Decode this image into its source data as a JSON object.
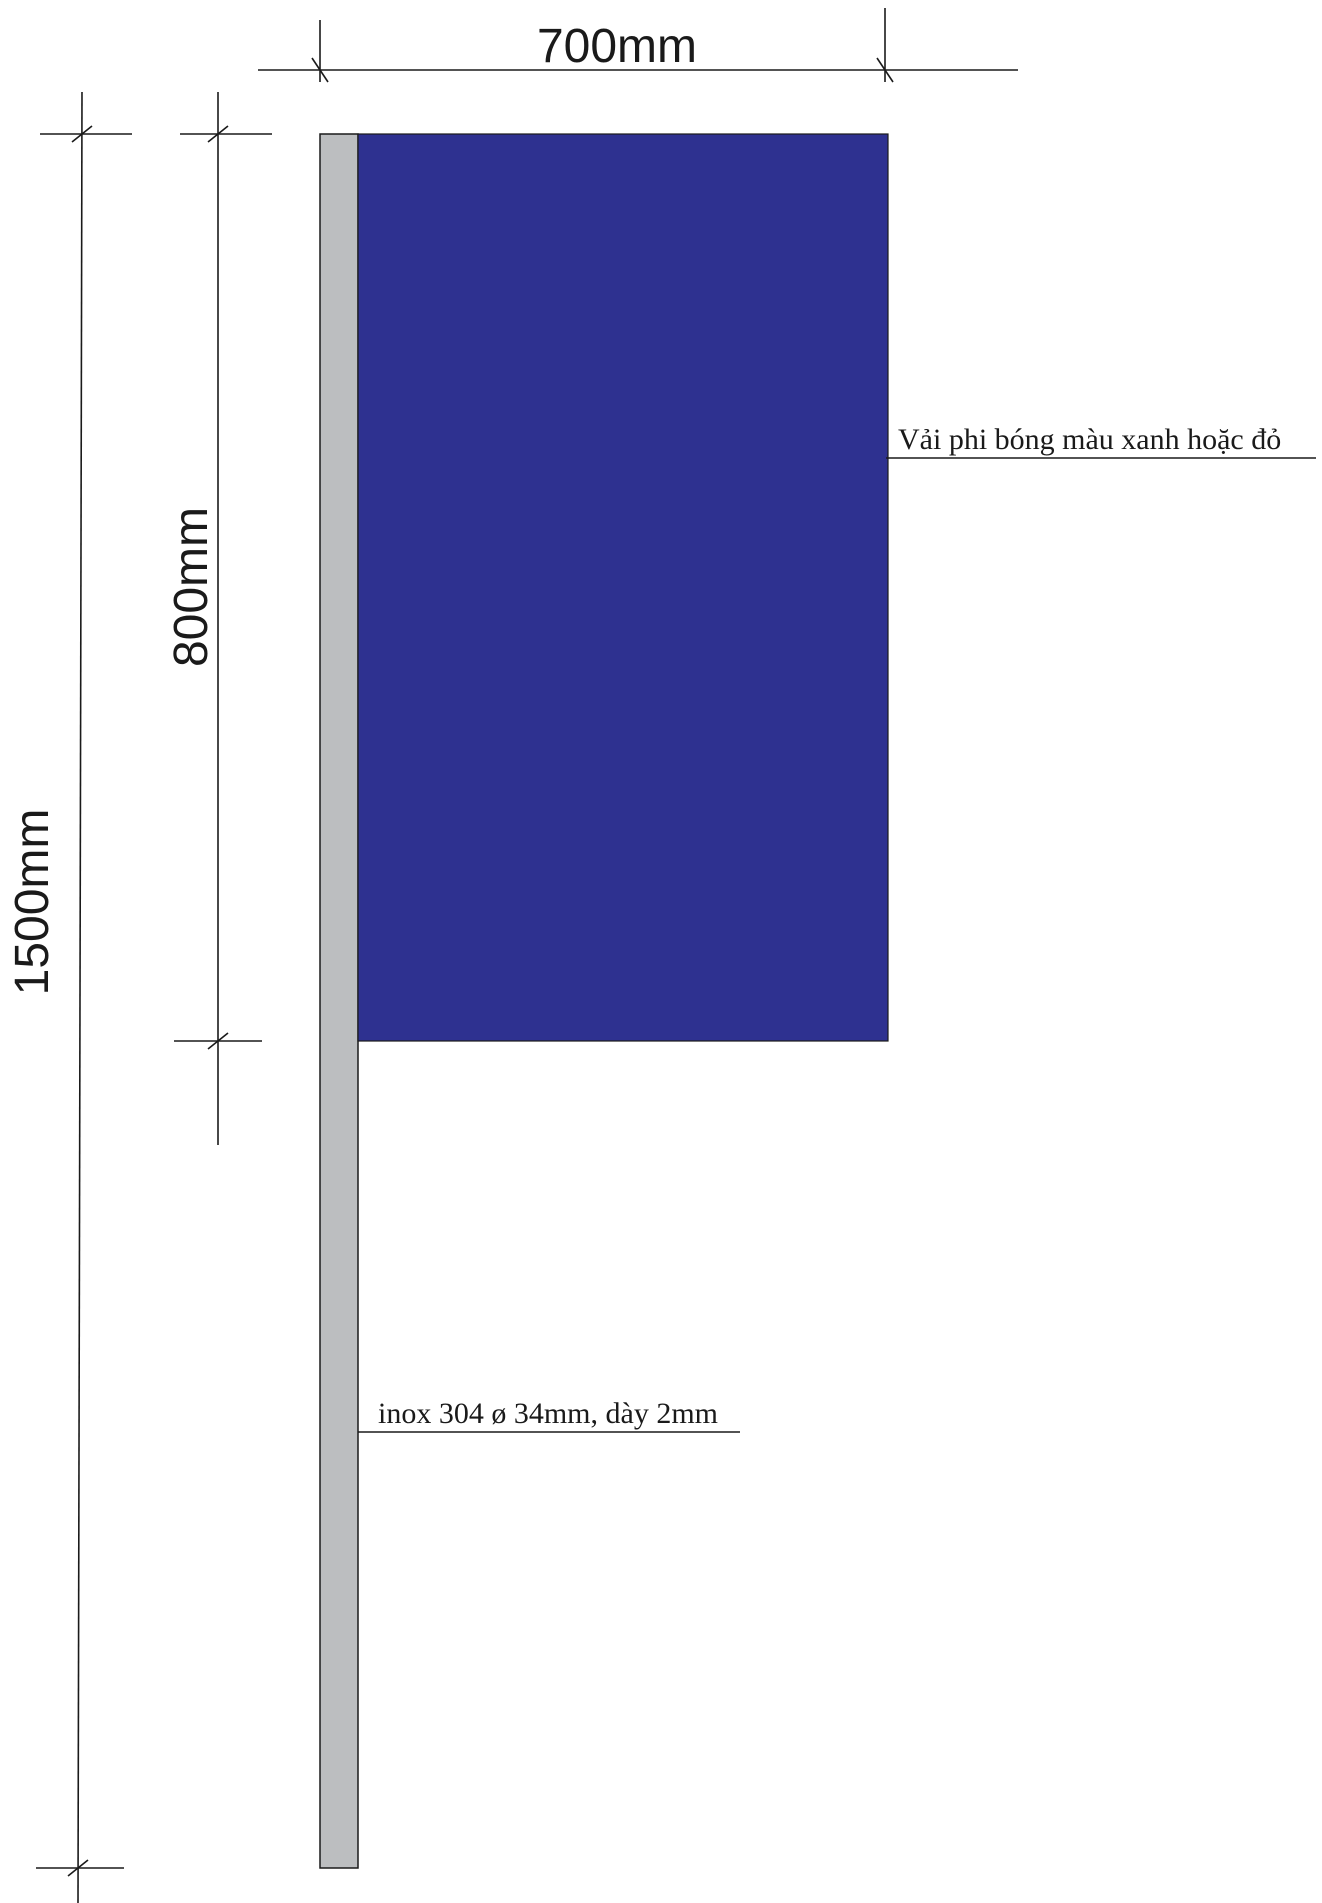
{
  "dimensions": {
    "width_label": "700mm",
    "flag_height_label": "800mm",
    "total_height_label": "1500mm"
  },
  "notes": {
    "fabric": "Vải phi bóng màu xanh hoặc đỏ",
    "pole": "inox 304 ø 34mm, dày 2mm"
  },
  "colors": {
    "flag": "#2e3190",
    "pole": "#bcbec0",
    "line": "#1a1a1a"
  }
}
